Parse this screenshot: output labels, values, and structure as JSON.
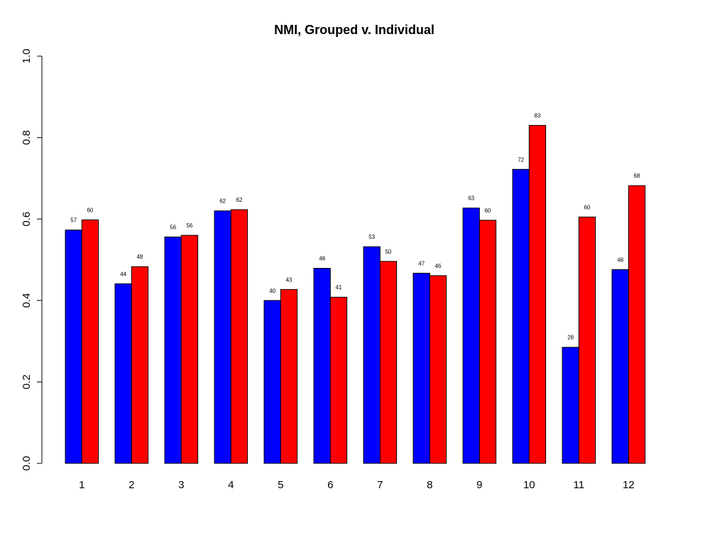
{
  "chart_data": {
    "type": "bar",
    "title": "NMI, Grouped v. Individual",
    "xlabel": "",
    "ylabel": "",
    "ylim": [
      0,
      1
    ],
    "yticks": [
      "0.0",
      "0.2",
      "0.4",
      "0.6",
      "0.8",
      "1.0"
    ],
    "categories": [
      "1",
      "2",
      "3",
      "4",
      "5",
      "6",
      "7",
      "8",
      "9",
      "10",
      "11",
      "12"
    ],
    "grid": false,
    "legend": "none",
    "series": [
      {
        "color": "#0000ff",
        "values": [
          0.573,
          0.441,
          0.556,
          0.62,
          0.4,
          0.479,
          0.532,
          0.467,
          0.627,
          0.722,
          0.285,
          0.476
        ],
        "labels": [
          "57",
          "44",
          "56",
          "62",
          "40",
          "48",
          "53",
          "47",
          "63",
          "72",
          "28",
          "48"
        ]
      },
      {
        "color": "#ff0000",
        "values": [
          0.598,
          0.483,
          0.56,
          0.623,
          0.427,
          0.408,
          0.496,
          0.461,
          0.597,
          0.83,
          0.605,
          0.682
        ],
        "labels": [
          "60",
          "48",
          "56",
          "62",
          "43",
          "41",
          "50",
          "46",
          "60",
          "83",
          "60",
          "68"
        ]
      }
    ]
  }
}
